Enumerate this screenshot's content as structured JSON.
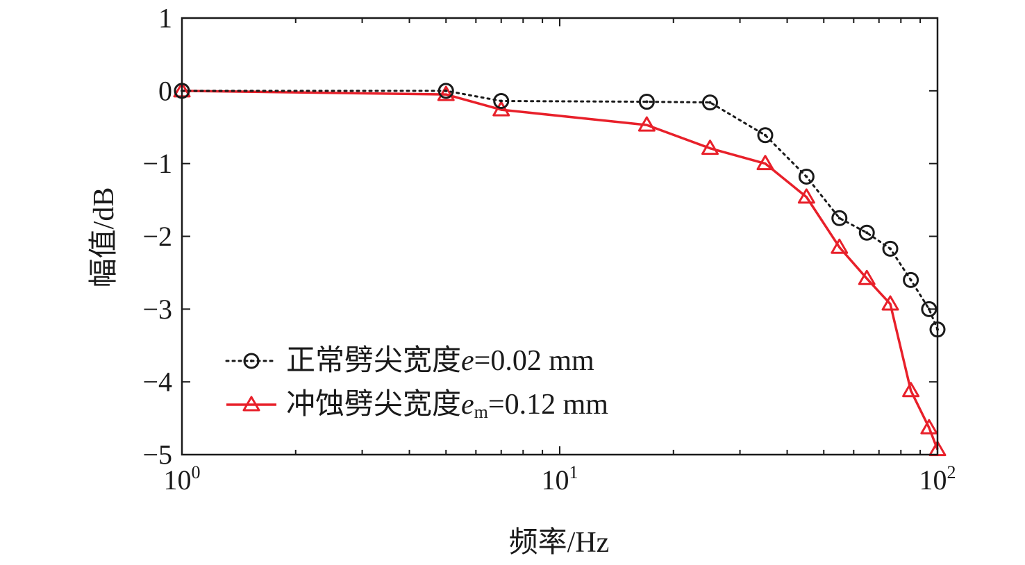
{
  "chart_data": {
    "type": "line",
    "xlabel": "频率/Hz",
    "ylabel": "幅值/dB",
    "xscale": "log",
    "xlim": [
      1,
      100
    ],
    "ylim": [
      -5,
      1
    ],
    "x_ticks": [
      {
        "value": 1,
        "base": "10",
        "exp": "0"
      },
      {
        "value": 10,
        "base": "10",
        "exp": "1"
      },
      {
        "value": 100,
        "base": "10",
        "exp": "2"
      }
    ],
    "y_ticks": [
      {
        "value": 1,
        "label": "1"
      },
      {
        "value": 0,
        "label": "0"
      },
      {
        "value": -1,
        "label": "−1"
      },
      {
        "value": -2,
        "label": "−2"
      },
      {
        "value": -3,
        "label": "−3"
      },
      {
        "value": -4,
        "label": "−4"
      },
      {
        "value": -5,
        "label": "−5"
      }
    ],
    "grid": false,
    "legend_position": "bottom-left",
    "series": [
      {
        "name_prefix": "正常劈尖宽度",
        "name_var": "e",
        "name_sub": "",
        "name_suffix": "=0.02 mm",
        "color": "#1a1a1a",
        "line": "dotted",
        "marker": "circle",
        "x": [
          1,
          5,
          7,
          17,
          25,
          35,
          45,
          55,
          65,
          75,
          85,
          95,
          100
        ],
        "y": [
          0,
          0,
          -0.14,
          -0.15,
          -0.16,
          -0.61,
          -1.18,
          -1.75,
          -1.95,
          -2.17,
          -2.6,
          -3.0,
          -3.28
        ]
      },
      {
        "name_prefix": "冲蚀劈尖宽度",
        "name_var": "e",
        "name_sub": "m",
        "name_suffix": "=0.12 mm",
        "color": "#e8202a",
        "line": "solid",
        "marker": "triangle",
        "x": [
          1,
          5,
          7,
          17,
          25,
          35,
          45,
          55,
          65,
          75,
          85,
          95,
          100
        ],
        "y": [
          0,
          -0.05,
          -0.26,
          -0.47,
          -0.79,
          -1.0,
          -1.46,
          -2.15,
          -2.58,
          -2.93,
          -4.12,
          -4.63,
          -4.93
        ]
      }
    ]
  }
}
